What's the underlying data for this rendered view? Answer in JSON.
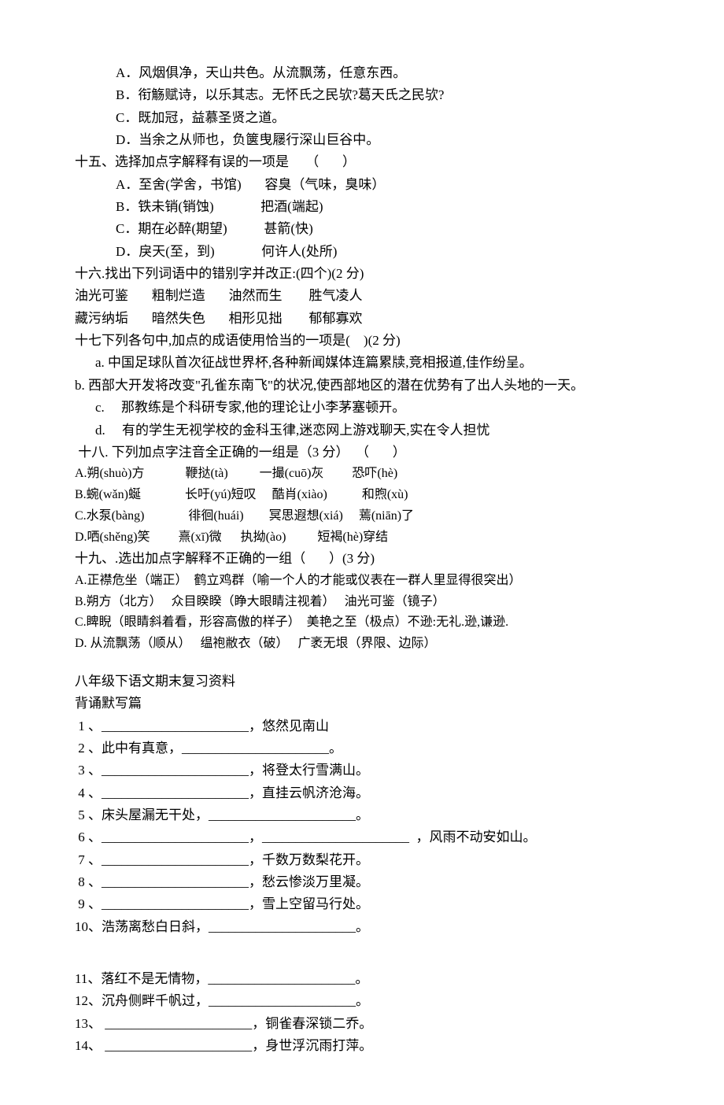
{
  "lines": [
    {
      "cls": "indent1",
      "text": "A．风烟俱净，天山共色。从流飘荡，任意东西。"
    },
    {
      "cls": "indent1",
      "text": "B．衔觞赋诗，以乐其志。无怀氏之民欤?葛天氏之民欤?"
    },
    {
      "cls": "indent1",
      "text": "C．既加冠，益慕圣贤之道。"
    },
    {
      "cls": "indent1",
      "text": "D．当余之从师也，负箧曳屦行深山巨谷中。"
    },
    {
      "cls": "",
      "text": "十五、选择加点字解释有误的一项是     （       ）"
    },
    {
      "cls": "indent1",
      "text": "A．至舍(学舍，书馆)       容臭（气味，臭味）"
    },
    {
      "cls": "indent1",
      "text": "B．铁未销(销蚀)              把酒(端起)"
    },
    {
      "cls": "indent1",
      "text": "C．期在必醉(期望)           甚箭(快)"
    },
    {
      "cls": "indent1",
      "text": "D．戾天(至，到)              何许人(处所)"
    },
    {
      "cls": "",
      "text": "十六.找出下列词语中的错别字并改正:(四个)(2 分)"
    },
    {
      "cls": "",
      "text": "油光可鉴       粗制烂造       油然而生        胜气凌人"
    },
    {
      "cls": "",
      "text": "藏污纳垢       暗然失色       相形见拙        郁郁寡欢"
    },
    {
      "cls": "",
      "text": "十七下列各句中,加点的成语使用恰当的一项是(    )(2 分)"
    },
    {
      "cls": "indent2",
      "text": "a. 中国足球队首次征战世界杯,各种新闻媒体连篇累牍,竞相报道,佳作纷呈。"
    },
    {
      "cls": "",
      "text": "b. 西部大开发将改变\"孔雀东南飞\"的状况,使西部地区的潜在优势有了出人头地的一天。"
    },
    {
      "cls": "indent2",
      "text": "c.     那教练是个科研专家,他的理论让小李茅塞顿开。"
    },
    {
      "cls": "indent2",
      "text": "d.     有的学生无视学校的金科玉律,迷恋网上游戏聊天,实在令人担忧"
    },
    {
      "cls": "",
      "text": " 十八. 下列加点字注音全正确的一组是（3 分）  （       ）"
    },
    {
      "cls": "small",
      "text": "A.朔(shuò)方             鞭挞(tà)          一撮(cuō)灰         恐吓(hè)"
    },
    {
      "cls": "small",
      "text": "B.蜿(wǎn)蜒              长吁(yú)短叹     酷肖(xiào)           和煦(xù)"
    },
    {
      "cls": "small",
      "text": "C.水泵(bàng)              徘徊(huái)        冥思遐想(xiá)     蔫(niān)了"
    },
    {
      "cls": "small",
      "text": "D.哂(shěng)笑         熹(xī)微      执拗(ào)          短褐(hè)穿结"
    },
    {
      "cls": "",
      "text": "十九、.选出加点字解释不正确的一组（       ）(3 分)"
    },
    {
      "cls": "small",
      "text": "A.正襟危坐（端正）  鹤立鸡群（喻一个人的才能或仪表在一群人里显得很突出）"
    },
    {
      "cls": "small",
      "text": "B.朔方（北方）   众目睽睽（睁大眼睛注视着）   油光可鉴（镜子）"
    },
    {
      "cls": "small",
      "text": "C.睥睨（眼睛斜着看，形容高傲的样子）  美艳之至（极点）不逊:无礼.逊,谦逊."
    },
    {
      "cls": "small",
      "text": "D. 从流飘荡（顺从）   缊袍敝衣（破）   广袤无垠（界限、边际）"
    },
    {
      "cls": "gap",
      "text": "八年级下语文期末复习资料"
    },
    {
      "cls": "",
      "text": "背诵默写篇"
    },
    {
      "cls": "",
      "text": " 1 、______________________，悠然见南山"
    },
    {
      "cls": "",
      "text": " 2 、此中有真意，______________________。"
    },
    {
      "cls": "",
      "text": " 3 、______________________，将登太行雪满山。"
    },
    {
      "cls": "",
      "text": " 4 、______________________，直挂云帆济沧海。"
    },
    {
      "cls": "",
      "text": " 5 、床头屋漏无干处，______________________。"
    },
    {
      "cls": "",
      "text": " 6 、______________________，______________________  ，风雨不动安如山。"
    },
    {
      "cls": "",
      "text": " 7 、______________________，千数万数梨花开。"
    },
    {
      "cls": "",
      "text": " 8 、______________________，愁云惨淡万里凝。"
    },
    {
      "cls": "",
      "text": " 9 、______________________，雪上空留马行处。"
    },
    {
      "cls": "",
      "text": "10、浩荡离愁白日斜，______________________。"
    },
    {
      "cls": "gap2",
      "text": "11、落红不是无情物，______________________。"
    },
    {
      "cls": "",
      "text": "12、沉舟侧畔千帆过，______________________。"
    },
    {
      "cls": "",
      "text": "13、 ______________________，铜雀春深锁二乔。"
    },
    {
      "cls": "",
      "text": "14、 ______________________，身世浮沉雨打萍。"
    }
  ]
}
